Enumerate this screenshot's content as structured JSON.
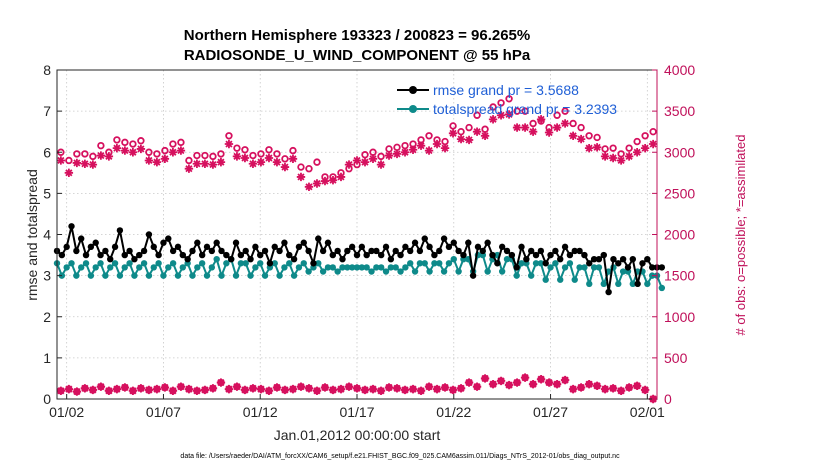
{
  "chart_data": {
    "type": "line",
    "title": [
      "Northern Hemisphere 193323 / 200823 = 96.265%",
      "RADIOSONDE_U_WIND_COMPONENT @ 55 hPa"
    ],
    "xlabel": "Jan.01,2012 00:00:00 start",
    "ylabel_left": "rmse and totalspread",
    "ylabel_right": "# of obs: o=possible; *=assimilated",
    "xlim": [
      0.5,
      31.5
    ],
    "ylim_left": [
      0,
      8
    ],
    "ylim_right": [
      0,
      4000
    ],
    "x_ticks": [
      1,
      6,
      11,
      16,
      21,
      26,
      31
    ],
    "x_tick_labels": [
      "01/02",
      "01/07",
      "01/12",
      "01/17",
      "01/22",
      "01/27",
      "02/01"
    ],
    "y_ticks_left": [
      0,
      1,
      2,
      3,
      4,
      5,
      6,
      7,
      8
    ],
    "y_ticks_right": [
      0,
      500,
      1000,
      1500,
      2000,
      2500,
      3000,
      3500,
      4000
    ],
    "colors": {
      "rmse": "#000000",
      "spread": "#0e8a8a",
      "obs": "#d6105e",
      "legend_text": "#1f5fd6",
      "right_axis": "#c0105a"
    },
    "legend": {
      "placement": "top-right",
      "entries": [
        "rmse grand pr = 3.5688",
        "totalspread grand pr = 3.2393"
      ]
    },
    "footnote": "data file: /Users/raeder/DAI/ATM_forcXX/CAM6_setup/f.e21.FHIST_BGC.f09_025.CAM6assim.011/Diags_NTrS_2012-01/obs_diag_output.nc",
    "x": [
      0.0,
      0.25,
      0.5,
      0.75,
      1.0,
      1.25,
      1.5,
      1.75,
      2.0,
      2.25,
      2.5,
      2.75,
      3.0,
      3.25,
      3.5,
      3.75,
      4.0,
      4.25,
      4.5,
      4.75,
      5.0,
      5.25,
      5.5,
      5.75,
      6.0,
      6.25,
      6.5,
      6.75,
      7.0,
      7.25,
      7.5,
      7.75,
      8.0,
      8.25,
      8.5,
      8.75,
      9.0,
      9.25,
      9.5,
      9.75,
      10.0,
      10.25,
      10.5,
      10.75,
      11.0,
      11.25,
      11.5,
      11.75,
      12.0,
      12.25,
      12.5,
      12.75,
      13.0,
      13.25,
      13.5,
      13.75,
      14.0,
      14.25,
      14.5,
      14.75,
      15.0,
      15.25,
      15.5,
      15.75,
      16.0,
      16.25,
      16.5,
      16.75,
      17.0,
      17.25,
      17.5,
      17.75,
      18.0,
      18.25,
      18.5,
      18.75,
      19.0,
      19.25,
      19.5,
      19.75,
      20.0,
      20.25,
      20.5,
      20.75,
      21.0,
      21.25,
      21.5,
      21.75,
      22.0,
      22.25,
      22.5,
      22.75,
      23.0,
      23.25,
      23.5,
      23.75,
      24.0,
      24.25,
      24.5,
      24.75,
      25.0,
      25.25,
      25.5,
      25.75,
      26.0,
      26.25,
      26.5,
      26.75,
      27.0,
      27.25,
      27.5,
      27.75,
      28.0,
      28.25,
      28.5,
      28.75,
      29.0,
      29.25,
      29.5,
      29.75,
      30.0,
      30.25,
      30.5,
      30.75,
      31.0,
      31.25
    ],
    "rmse": [
      3.6,
      3.5,
      3.7,
      4.2,
      3.6,
      3.9,
      3.5,
      3.7,
      3.8,
      3.5,
      3.6,
      3.4,
      3.7,
      4.1,
      3.5,
      3.6,
      3.4,
      3.5,
      3.6,
      4.0,
      3.7,
      3.5,
      3.8,
      3.9,
      3.6,
      3.7,
      3.5,
      3.4,
      3.6,
      3.8,
      3.5,
      3.7,
      3.6,
      3.8,
      3.6,
      3.5,
      3.4,
      3.8,
      3.5,
      3.6,
      3.4,
      3.7,
      3.5,
      3.6,
      3.3,
      3.7,
      3.6,
      3.8,
      3.5,
      3.4,
      3.7,
      3.8,
      3.6,
      3.3,
      3.9,
      3.6,
      3.8,
      3.5,
      3.6,
      3.4,
      3.6,
      3.7,
      3.5,
      3.7,
      3.5,
      3.6,
      3.6,
      3.5,
      3.7,
      3.4,
      3.6,
      3.5,
      3.7,
      3.6,
      3.8,
      3.6,
      3.9,
      3.7,
      3.5,
      3.6,
      3.9,
      3.7,
      3.8,
      3.6,
      3.5,
      3.8,
      3.0,
      3.7,
      3.6,
      3.8,
      3.5,
      3.3,
      3.7,
      3.6,
      3.5,
      3.2,
      3.7,
      3.4,
      3.6,
      3.5,
      3.6,
      3.3,
      3.5,
      3.6,
      3.4,
      3.7,
      3.5,
      3.6,
      3.6,
      3.5,
      3.3,
      3.4,
      3.4,
      3.5,
      2.6,
      3.4,
      3.3,
      3.4,
      3.2,
      3.4,
      2.8,
      3.3,
      3.4,
      3.2,
      3.2,
      3.2
    ],
    "spread": [
      3.3,
      3.0,
      3.2,
      3.3,
      3.0,
      3.2,
      3.3,
      3.0,
      3.2,
      3.3,
      3.0,
      3.2,
      3.3,
      3.0,
      3.2,
      3.3,
      3.0,
      3.2,
      3.3,
      3.0,
      3.2,
      3.3,
      3.0,
      3.2,
      3.3,
      3.0,
      3.2,
      3.3,
      3.0,
      3.2,
      3.3,
      3.0,
      3.2,
      3.4,
      3.0,
      3.3,
      3.4,
      3.0,
      3.3,
      3.3,
      3.0,
      3.2,
      3.3,
      3.0,
      3.2,
      3.3,
      3.0,
      3.2,
      3.3,
      3.0,
      3.2,
      3.3,
      3.1,
      3.2,
      3.3,
      3.1,
      3.2,
      3.2,
      3.1,
      3.2,
      3.2,
      3.2,
      3.2,
      3.2,
      3.2,
      3.1,
      3.2,
      3.2,
      3.1,
      3.2,
      3.2,
      3.1,
      3.2,
      3.3,
      3.1,
      3.3,
      3.3,
      3.1,
      3.3,
      3.3,
      3.1,
      3.3,
      3.4,
      3.1,
      3.4,
      3.4,
      3.1,
      3.5,
      3.5,
      3.1,
      3.4,
      3.5,
      3.1,
      3.4,
      3.4,
      3.0,
      3.3,
      3.3,
      3.0,
      3.3,
      3.3,
      2.9,
      3.2,
      3.3,
      2.9,
      3.2,
      3.3,
      2.9,
      3.2,
      3.2,
      2.8,
      3.2,
      3.2,
      2.8,
      3.1,
      3.2,
      2.8,
      3.1,
      3.1,
      2.8,
      3.1,
      3.1,
      2.8,
      3.0,
      3.0,
      2.7
    ],
    "obs_possible": [
      3000,
      2900,
      2980,
      2980,
      2950,
      3080,
      3000,
      3150,
      3120,
      3100,
      3140,
      3000,
      2980,
      3020,
      3100,
      3120,
      2900,
      2960,
      2960,
      2950,
      2980,
      3200,
      3050,
      3030,
      2960,
      2980,
      3030,
      2980,
      2920,
      3020,
      2820,
      2800,
      2880,
      2700,
      2700,
      2750,
      2800,
      2850,
      2970,
      3000,
      2950,
      3040,
      3060,
      3080,
      3100,
      3150,
      3200,
      3150,
      3130,
      3320,
      3250,
      3300,
      3450,
      3280,
      3550,
      3600,
      3650,
      3500,
      3500,
      3350,
      3380,
      3300,
      3450,
      3500,
      3350,
      3300,
      3200,
      3180,
      3040,
      3050,
      2980,
      3050,
      3130,
      3200,
      3250
    ],
    "obs_assimilated": [
      2900,
      2750,
      2870,
      2860,
      2850,
      2960,
      2950,
      3050,
      3020,
      3000,
      3040,
      2900,
      2880,
      2920,
      3000,
      3020,
      2800,
      2860,
      2860,
      2850,
      2880,
      3100,
      2950,
      2930,
      2860,
      2880,
      2930,
      2880,
      2820,
      2920,
      2700,
      2580,
      2620,
      2650,
      2660,
      2700,
      2850,
      2900,
      2880,
      2920,
      2850,
      2960,
      2980,
      3000,
      3030,
      3080,
      3020,
      3100,
      3050,
      3230,
      3160,
      3150,
      3250,
      3200,
      3400,
      3450,
      3460,
      3300,
      3300,
      3250,
      3400,
      3240,
      3300,
      3350,
      3200,
      3160,
      3050,
      3060,
      2950,
      2930,
      2900,
      2950,
      3000,
      3050,
      3100
    ],
    "obs_low_possible": [
      100,
      120,
      90,
      130,
      110,
      150,
      100,
      120,
      140,
      100,
      130,
      110,
      120,
      140,
      100,
      150,
      120,
      100,
      110,
      130,
      200,
      120,
      150,
      110,
      130,
      120,
      100,
      140,
      110,
      120,
      150,
      130,
      100,
      140,
      110,
      120,
      150,
      130,
      110,
      120,
      100,
      140,
      130,
      110,
      120,
      100,
      150,
      120,
      140,
      110,
      130,
      200,
      150,
      250,
      180,
      220,
      170,
      200,
      260,
      180,
      240,
      200,
      180,
      230,
      120,
      140,
      180,
      160,
      120,
      130,
      100,
      140,
      160,
      110,
      0
    ]
  }
}
